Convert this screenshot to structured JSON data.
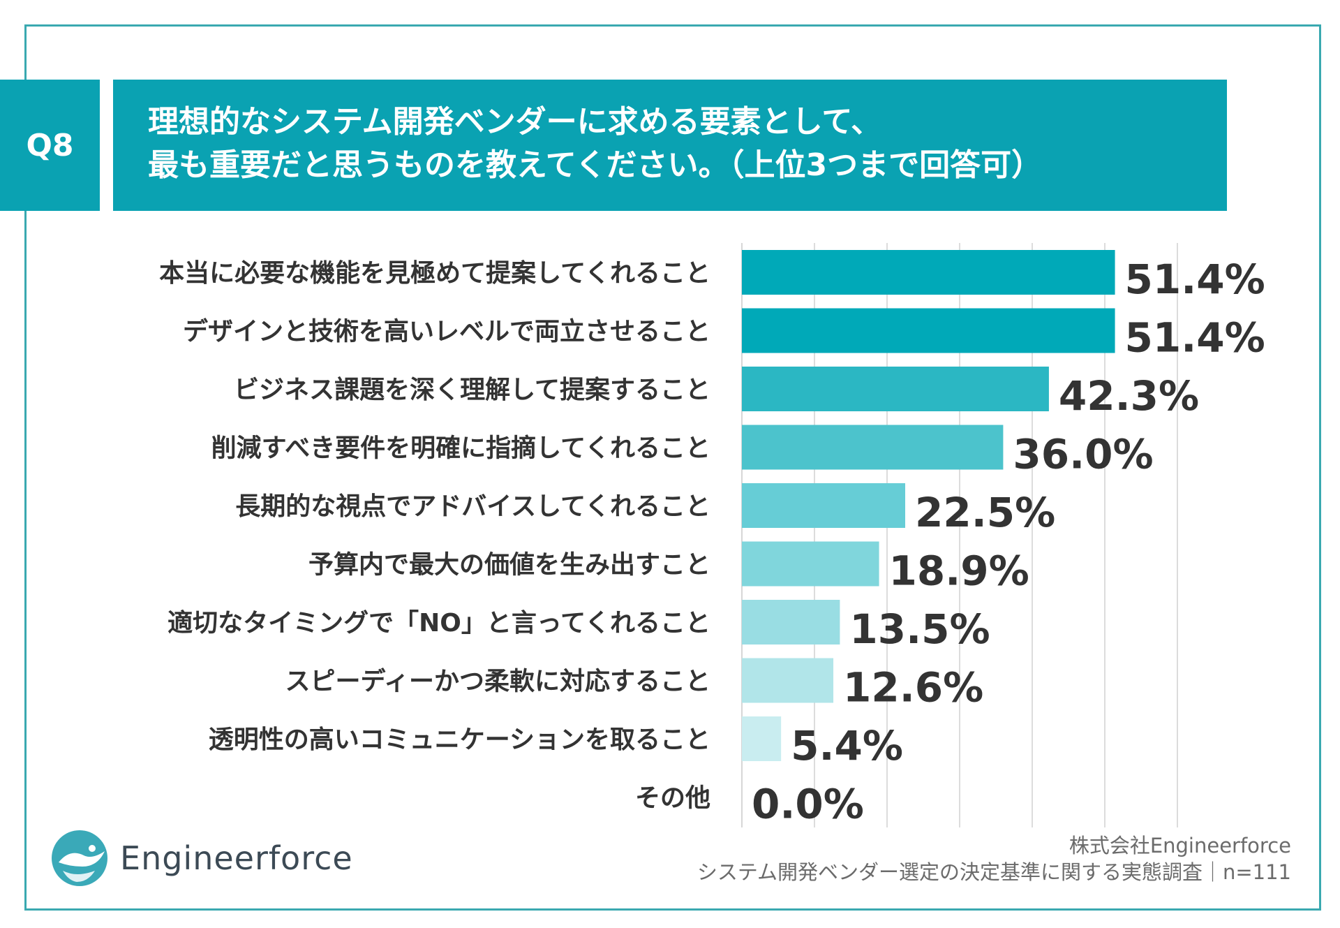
{
  "question": {
    "number": "Q8",
    "title_line1": "理想的なシステム開発ベンダーに求める要素として、",
    "title_line2": "最も重要だと思うものを教えてください。（上位3つまで回答可）"
  },
  "chart_data": {
    "type": "bar",
    "orientation": "horizontal",
    "title": "理想的なシステム開発ベンダーに求める要素として、最も重要だと思うものを教えてください。（上位3つまで回答可）",
    "categories": [
      "本当に必要な機能を見極めて提案してくれること",
      "デザインと技術を高いレベルで両立させること",
      "ビジネス課題を深く理解して提案すること",
      "削減すべき要件を明確に指摘してくれること",
      "長期的な視点でアドバイスしてくれること",
      "予算内で最大の価値を生み出すこと",
      "適切なタイミングで「NO」と言ってくれること",
      "スピーディーかつ柔軟に対応すること",
      "透明性の高いコミュニケーションを取ること",
      "その他"
    ],
    "values": [
      51.4,
      51.4,
      42.3,
      36.0,
      22.5,
      18.9,
      13.5,
      12.6,
      5.4,
      0.0
    ],
    "value_labels": [
      "51.4%",
      "51.4%",
      "42.3%",
      "36.0%",
      "22.5%",
      "18.9%",
      "13.5%",
      "12.6%",
      "5.4%",
      "0.0%"
    ],
    "bar_colors": [
      "#00a9b8",
      "#00a9b8",
      "#2bb7c3",
      "#4cc3cc",
      "#66cdd6",
      "#80d6dc",
      "#99dde3",
      "#b1e5e9",
      "#c9edf0",
      "#c9edf0"
    ],
    "xlim": [
      0,
      60
    ],
    "gridlines": [
      10,
      20,
      30,
      40,
      50,
      60
    ],
    "grid": true,
    "xlabel": "",
    "ylabel": ""
  },
  "branding": {
    "logo_text": "Engineerforce",
    "logo_icon": "bird-wave-logo-icon",
    "accent_color": "#0aa2b2"
  },
  "footer": {
    "company": "株式会社Engineerforce",
    "survey": "システム開発ベンダー選定の決定基準に関する実態調査｜n=111"
  }
}
